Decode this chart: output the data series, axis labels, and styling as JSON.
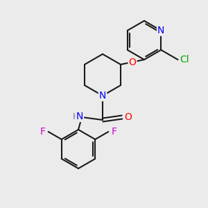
{
  "background_color": "#ebebeb",
  "bond_color": "#1a1a1a",
  "atom_colors": {
    "N": "#0000ff",
    "O": "#ff0000",
    "F": "#cc00cc",
    "Cl": "#00aa00",
    "C": "#1a1a1a",
    "H": "#777777"
  },
  "figsize": [
    3.0,
    3.0
  ],
  "dpi": 100,
  "lw": 1.5,
  "fs": 9.5
}
